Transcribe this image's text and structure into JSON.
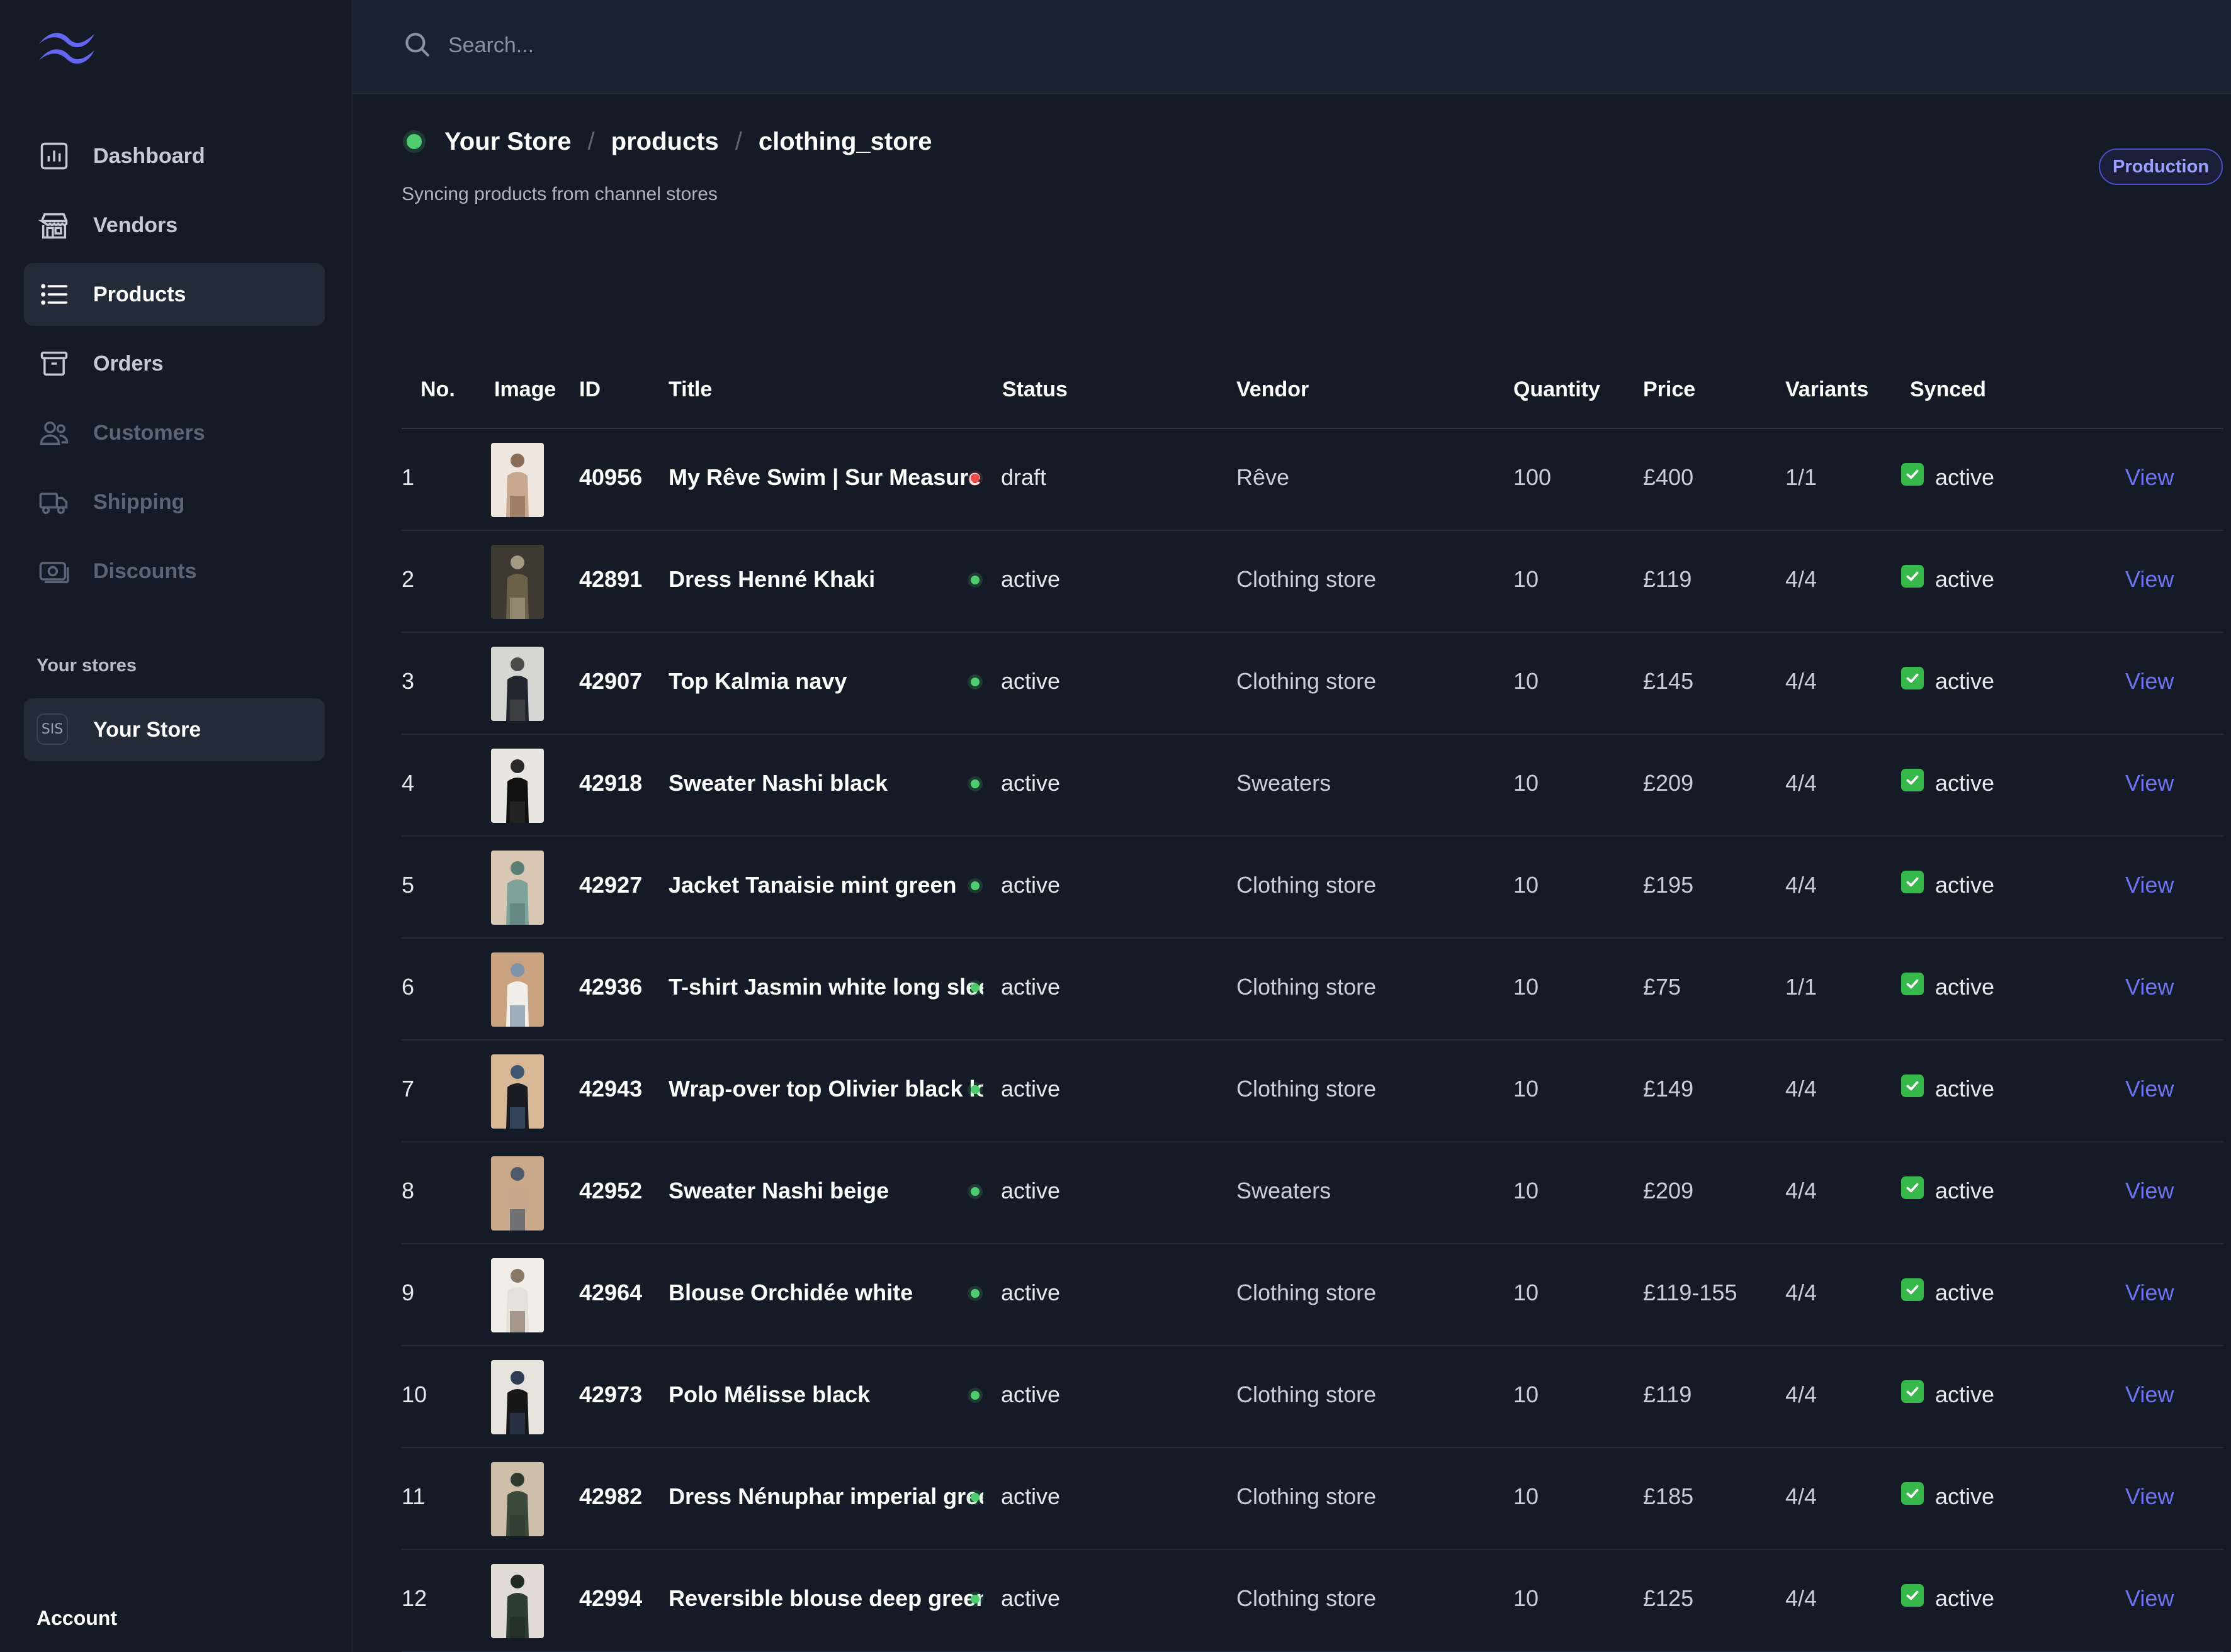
{
  "search": {
    "placeholder": "Search..."
  },
  "nav": [
    {
      "label": "Dashboard",
      "icon": "chart-bar-icon",
      "state": "normal"
    },
    {
      "label": "Vendors",
      "icon": "storefront-icon",
      "state": "normal"
    },
    {
      "label": "Products",
      "icon": "list-icon",
      "state": "active"
    },
    {
      "label": "Orders",
      "icon": "archive-box-icon",
      "state": "normal"
    },
    {
      "label": "Customers",
      "icon": "users-icon",
      "state": "disabled"
    },
    {
      "label": "Shipping",
      "icon": "truck-icon",
      "state": "disabled"
    },
    {
      "label": "Discounts",
      "icon": "banknote-icon",
      "state": "disabled"
    }
  ],
  "stores_section": {
    "label": "Your stores",
    "store_badge": "SIS",
    "store_name": "Your Store"
  },
  "account": {
    "label": "Account"
  },
  "breadcrumb": {
    "store": "Your Store",
    "collection": "products",
    "table": "clothing_store",
    "separator": "/"
  },
  "subtitle": "Syncing products from channel stores",
  "environment_badge": "Production",
  "table": {
    "columns": [
      "No.",
      "Image",
      "ID",
      "Title",
      "Status",
      "Vendor",
      "Quantity",
      "Price",
      "Variants",
      "Synced"
    ],
    "rows": [
      {
        "no": "1",
        "id": "40956",
        "title": "My Rêve Swim | Sur Measure",
        "status": "draft",
        "vendor": "Rêve",
        "quantity": "100",
        "price": "£400",
        "variants": "1/1",
        "synced": "active",
        "action": "View"
      },
      {
        "no": "2",
        "id": "42891",
        "title": "Dress Henné Khaki",
        "status": "active",
        "vendor": "Clothing store",
        "quantity": "10",
        "price": "£119",
        "variants": "4/4",
        "synced": "active",
        "action": "View"
      },
      {
        "no": "3",
        "id": "42907",
        "title": "Top Kalmia navy",
        "status": "active",
        "vendor": "Clothing store",
        "quantity": "10",
        "price": "£145",
        "variants": "4/4",
        "synced": "active",
        "action": "View"
      },
      {
        "no": "4",
        "id": "42918",
        "title": "Sweater Nashi black",
        "status": "active",
        "vendor": "Sweaters",
        "quantity": "10",
        "price": "£209",
        "variants": "4/4",
        "synced": "active",
        "action": "View"
      },
      {
        "no": "5",
        "id": "42927",
        "title": "Jacket Tanaisie mint green",
        "status": "active",
        "vendor": "Clothing store",
        "quantity": "10",
        "price": "£195",
        "variants": "4/4",
        "synced": "active",
        "action": "View"
      },
      {
        "no": "6",
        "id": "42936",
        "title": "T-shirt Jasmin white long sleev",
        "status": "active",
        "vendor": "Clothing store",
        "quantity": "10",
        "price": "£75",
        "variants": "1/1",
        "synced": "active",
        "action": "View"
      },
      {
        "no": "7",
        "id": "42943",
        "title": "Wrap-over top Olivier black lon",
        "status": "active",
        "vendor": "Clothing store",
        "quantity": "10",
        "price": "£149",
        "variants": "4/4",
        "synced": "active",
        "action": "View"
      },
      {
        "no": "8",
        "id": "42952",
        "title": "Sweater Nashi beige",
        "status": "active",
        "vendor": "Sweaters",
        "quantity": "10",
        "price": "£209",
        "variants": "4/4",
        "synced": "active",
        "action": "View"
      },
      {
        "no": "9",
        "id": "42964",
        "title": "Blouse Orchidée white",
        "status": "active",
        "vendor": "Clothing store",
        "quantity": "10",
        "price": "£119-155",
        "variants": "4/4",
        "synced": "active",
        "action": "View"
      },
      {
        "no": "10",
        "id": "42973",
        "title": "Polo Mélisse black",
        "status": "active",
        "vendor": "Clothing store",
        "quantity": "10",
        "price": "£119",
        "variants": "4/4",
        "synced": "active",
        "action": "View"
      },
      {
        "no": "11",
        "id": "42982",
        "title": "Dress Nénuphar imperial green",
        "status": "active",
        "vendor": "Clothing store",
        "quantity": "10",
        "price": "£185",
        "variants": "4/4",
        "synced": "active",
        "action": "View"
      },
      {
        "no": "12",
        "id": "42994",
        "title": "Reversible blouse deep green",
        "status": "active",
        "vendor": "Clothing store",
        "quantity": "10",
        "price": "£125",
        "variants": "4/4",
        "synced": "active",
        "action": "View"
      }
    ]
  },
  "colors": {
    "accent": "#6e73f0",
    "status_active": "#4fce71",
    "status_draft": "#ef4b4b",
    "synced_check": "#36b84a",
    "background": "#141a26"
  }
}
